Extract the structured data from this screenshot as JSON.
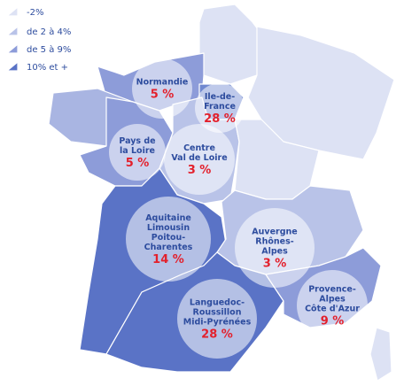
{
  "legend": [
    {
      "label": "-2%"
    },
    {
      "label": "de 2 à 4%"
    },
    {
      "label": "de 5 à 9%"
    },
    {
      "label": "10% et +"
    }
  ],
  "regions": [
    {
      "name_lines": [
        "Normandie"
      ],
      "share": "5 %"
    },
    {
      "name_lines": [
        "Ile-de-",
        "France"
      ],
      "share": "28 %"
    },
    {
      "name_lines": [
        "Pays de",
        "la Loire"
      ],
      "share": "5 %"
    },
    {
      "name_lines": [
        "Centre",
        "Val de Loire"
      ],
      "share": "3 %"
    },
    {
      "name_lines": [
        "Aquitaine",
        "Limousin",
        "Poitou-",
        "Charentes"
      ],
      "share": "14 %"
    },
    {
      "name_lines": [
        "Auvergne",
        "Rhônes-",
        "Alpes"
      ],
      "share": "3 %"
    },
    {
      "name_lines": [
        "Languedoc-",
        "Roussillon",
        "Midi-Pyrénées"
      ],
      "share": "28 %"
    },
    {
      "name_lines": [
        "Provence-",
        "Alpes",
        "Côte d'Azur"
      ],
      "share": "9 %"
    }
  ]
}
